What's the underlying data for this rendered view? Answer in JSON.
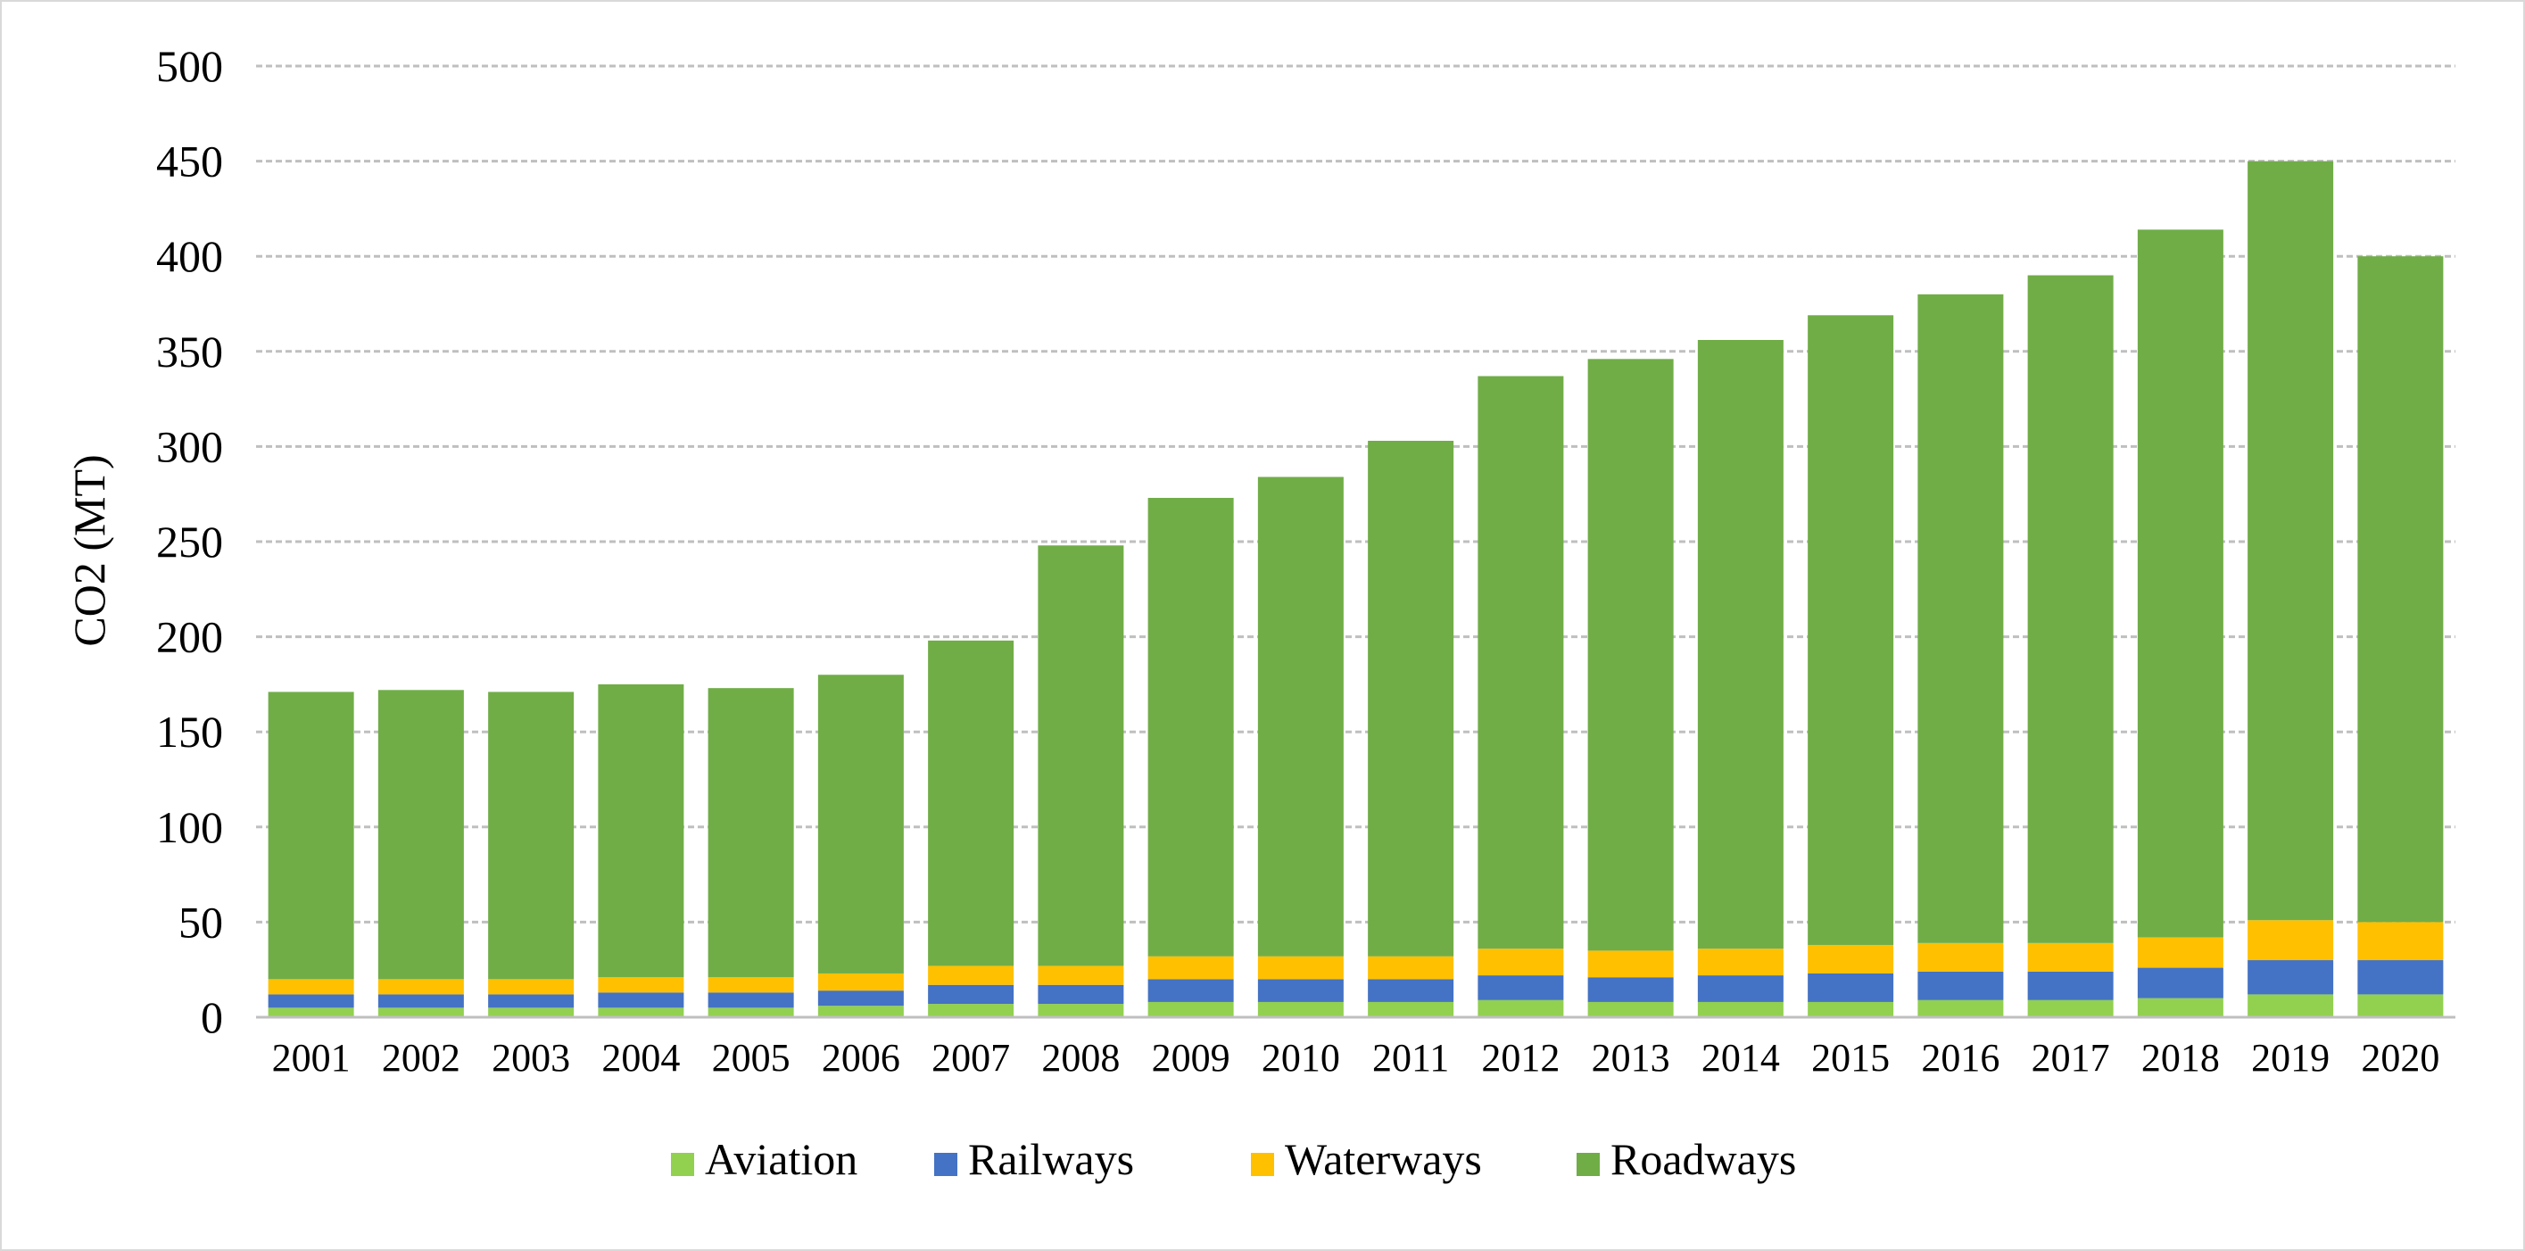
{
  "chart_data": {
    "type": "bar",
    "stacked": true,
    "title": "",
    "xlabel": "",
    "ylabel": "CO2 (MT)",
    "ylim": [
      0,
      500
    ],
    "yticks": [
      0,
      50,
      100,
      150,
      200,
      250,
      300,
      350,
      400,
      450,
      500
    ],
    "grid": "horizontal dashed",
    "legend_position": "bottom",
    "categories": [
      "2001",
      "2002",
      "2003",
      "2004",
      "2005",
      "2006",
      "2007",
      "2008",
      "2009",
      "2010",
      "2011",
      "2012",
      "2013",
      "2014",
      "2015",
      "2016",
      "2017",
      "2018",
      "2019",
      "2020"
    ],
    "series": [
      {
        "name": "Aviation",
        "color": "#92d050",
        "values": [
          5,
          5,
          5,
          5,
          5,
          6,
          7,
          7,
          8,
          8,
          8,
          9,
          8,
          8,
          8,
          9,
          9,
          10,
          12,
          12
        ]
      },
      {
        "name": "Railways",
        "color": "#4472c4",
        "values": [
          7,
          7,
          7,
          8,
          8,
          8,
          10,
          10,
          12,
          12,
          12,
          13,
          13,
          14,
          15,
          15,
          15,
          16,
          18,
          18
        ]
      },
      {
        "name": "Waterways",
        "color": "#ffc000",
        "values": [
          8,
          8,
          8,
          8,
          8,
          9,
          10,
          10,
          12,
          12,
          12,
          14,
          14,
          14,
          15,
          15,
          15,
          16,
          21,
          20
        ]
      },
      {
        "name": "Roadways",
        "color": "#70ad47",
        "values": [
          151,
          152,
          151,
          154,
          152,
          157,
          171,
          221,
          241,
          252,
          271,
          301,
          311,
          320,
          331,
          341,
          351,
          372,
          399,
          350
        ]
      }
    ]
  }
}
